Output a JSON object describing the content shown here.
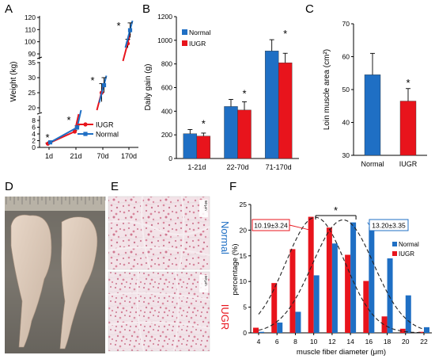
{
  "panel_labels": [
    "A",
    "B",
    "C",
    "D",
    "E",
    "F"
  ],
  "colors": {
    "normal": "#1f6fc4",
    "iugr": "#e8141c",
    "axis": "#000000"
  },
  "chart_data": [
    {
      "panel": "A",
      "type": "line",
      "ylabel": "Weight (kg)",
      "categories": [
        "1d",
        "21d",
        "70d",
        "170d"
      ],
      "y_ticks": {
        "top": [
          90,
          100,
          110,
          120
        ],
        "middle": [
          20,
          25,
          30,
          35
        ],
        "bottom": [
          0,
          2,
          4,
          6,
          8
        ]
      },
      "series": [
        {
          "name": "IUGR",
          "values": [
            1.1,
            4.7,
            25.0,
            98.5
          ],
          "errors": [
            0.2,
            0.4,
            3.0,
            3.5
          ]
        },
        {
          "name": "Normal",
          "values": [
            1.5,
            5.9,
            27.5,
            109.5
          ],
          "errors": [
            0.2,
            0.5,
            2.5,
            6.0
          ]
        }
      ],
      "annotations": [
        "*",
        "*",
        "*",
        "*"
      ],
      "legend": "bottom-right"
    },
    {
      "panel": "B",
      "type": "bar",
      "ylabel": "Daily gain (g)",
      "categories": [
        "1-21d",
        "22-70d",
        "71-170d"
      ],
      "ylim": [
        0,
        1200
      ],
      "y_ticks": [
        0,
        200,
        400,
        600,
        800,
        1000,
        1200
      ],
      "series": [
        {
          "name": "Normal",
          "values": [
            210,
            440,
            910
          ],
          "errors": [
            35,
            60,
            95
          ]
        },
        {
          "name": "IUGR",
          "values": [
            190,
            410,
            810
          ],
          "errors": [
            25,
            70,
            80
          ]
        }
      ],
      "annotations": [
        "*",
        "*",
        "*"
      ],
      "legend": "top-left"
    },
    {
      "panel": "C",
      "type": "bar",
      "ylabel": "Loin muscle area (cm²)",
      "categories": [
        "Normal",
        "IUGR"
      ],
      "ylim": [
        30,
        70
      ],
      "y_ticks": [
        30,
        40,
        50,
        60,
        70
      ],
      "values": [
        54.5,
        46.5
      ],
      "errors": [
        6.5,
        3.8
      ],
      "annotations": [
        "*"
      ]
    },
    {
      "panel": "F",
      "type": "bar",
      "ylabel": "percentage (%)",
      "xlabel": "muscle fiber diameter (μm)",
      "categories": [
        4,
        6,
        8,
        10,
        12,
        14,
        16,
        18,
        20,
        22
      ],
      "ylim": [
        0,
        25
      ],
      "y_ticks": [
        0,
        5,
        10,
        15,
        20,
        25
      ],
      "series": [
        {
          "name": "Normal",
          "values": [
            0.2,
            2.0,
            4.1,
            11.2,
            17.4,
            21.5,
            20.6,
            14.5,
            7.3,
            1.1
          ]
        },
        {
          "name": "IUGR",
          "values": [
            1.0,
            9.7,
            16.3,
            22.6,
            20.5,
            15.2,
            10.1,
            3.2,
            0.8,
            0.2
          ]
        }
      ],
      "fits": [
        {
          "name": "IUGR",
          "mean": 10.19,
          "sd": 3.24,
          "peak": 22.5
        },
        {
          "name": "Normal",
          "mean": 13.2,
          "sd": 3.35,
          "peak": 22.0
        }
      ],
      "callouts": [
        "10.19±3.24",
        "13.20±3.35"
      ],
      "significance": "*",
      "legend": "top-right"
    }
  ],
  "panel_e": {
    "side_labels": {
      "normal": "Normal",
      "iugr": "IUGR"
    },
    "scale_bars": [
      "50 μm",
      "50 μm"
    ]
  }
}
